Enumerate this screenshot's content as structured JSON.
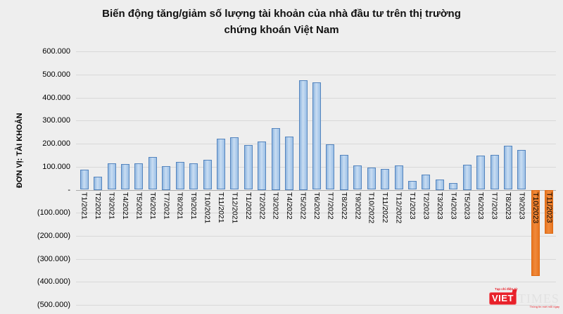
{
  "title": {
    "line1": "Biến động tăng/giảm số lượng tài khoản của nhà đầu tư trên thị trường",
    "line2": "chứng khoán Việt Nam"
  },
  "y_axis": {
    "title": "ĐƠN VỊ: TÀI KHOẢN",
    "tick_labels": [
      "600.000",
      "500.000",
      "400.000",
      "300.000",
      "200.000",
      "100.000",
      "-",
      "(100.000)",
      "(200.000)",
      "(300.000)",
      "(400.000)",
      "(500.000)"
    ],
    "tick_values": [
      600000,
      500000,
      400000,
      300000,
      200000,
      100000,
      0,
      -100000,
      -200000,
      -300000,
      -400000,
      -500000
    ]
  },
  "chart_data": {
    "type": "bar",
    "title": "Biến động tăng/giảm số lượng tài khoản của nhà đầu tư trên thị trường chứng khoán Việt Nam",
    "xlabel": "",
    "ylabel": "ĐƠN VỊ: TÀI KHOẢN",
    "ylim": [
      -500000,
      600000
    ],
    "grid": true,
    "legend": false,
    "categories": [
      "T1/2021",
      "T2/2021",
      "T3/2021",
      "T4/2021",
      "T5/2021",
      "T6/2021",
      "T7/2021",
      "T8/2021",
      "T9/2021",
      "T10/2021",
      "T11/2021",
      "T12/2021",
      "T1/2022",
      "T2/2022",
      "T3/2022",
      "T4/2022",
      "T5/2022",
      "T6/2022",
      "T7/2022",
      "T8/2022",
      "T9/2022",
      "T10/2022",
      "T11/2022",
      "T12/2022",
      "T1/2023",
      "T2/2023",
      "T3/2023",
      "T4/2023",
      "T5/2023",
      "T6/2023",
      "T7/2023",
      "T8/2023",
      "T9/2023",
      "T10/2023",
      "T11/2023"
    ],
    "values": [
      87000,
      58000,
      115000,
      111000,
      114000,
      141000,
      104000,
      121000,
      116000,
      131000,
      221000,
      227000,
      195000,
      211000,
      269000,
      231000,
      477000,
      465000,
      197000,
      153000,
      105000,
      97000,
      91000,
      106000,
      39000,
      67000,
      46000,
      28000,
      110000,
      147000,
      152000,
      192000,
      174000,
      -375000,
      -190000
    ],
    "positive_bar_color": "#A9C7E8",
    "positive_bar_border": "#5585BE",
    "negative_bar_color": "#ED7D31",
    "negative_bar_border": "#DD6A15",
    "background_color": "#EEEEEE",
    "gridline_color": "#D8D8D8"
  },
  "logo": {
    "tagline_top": "Tạp chí điện tử",
    "name_left": "VIET",
    "name_right": "TIMES",
    "tagline_bottom": "Thông tin mới mỗi ngày"
  }
}
